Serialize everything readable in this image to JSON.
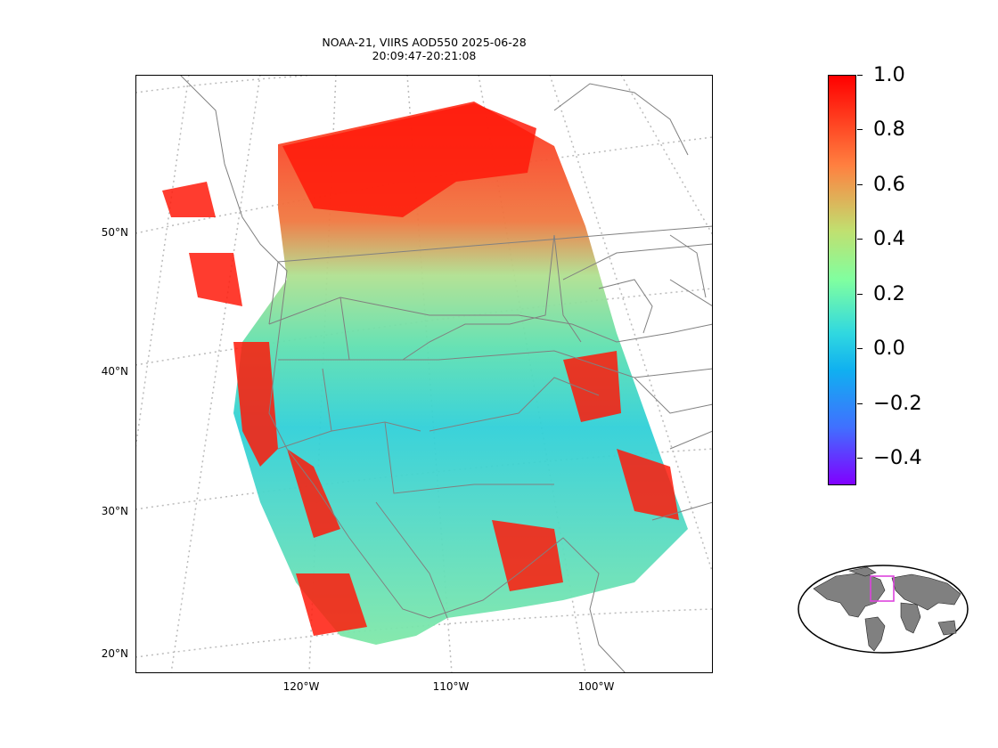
{
  "title": {
    "line1": "NOAA-21, VIIRS AOD550 2025-06-28",
    "line2": "20:09:47-20:21:08"
  },
  "map": {
    "latitude_labels": [
      "50°N",
      "40°N",
      "30°N",
      "20°N"
    ],
    "longitude_labels": [
      "120°W",
      "110°W",
      "100°W"
    ],
    "land_color": "#ffffff",
    "border_color": "#808080",
    "graticule_color": "#bbbbbb"
  },
  "colorbar": {
    "colormap": "rainbow",
    "range": [
      -0.5,
      1.0
    ],
    "tick_values": [
      1.0,
      0.8,
      0.6,
      0.4,
      0.2,
      0.0,
      -0.2,
      -0.4
    ],
    "tick_labels": [
      "1.0",
      "0.8",
      "0.6",
      "0.4",
      "0.2",
      "0.0",
      "−0.2",
      "−0.4"
    ]
  },
  "inset": {
    "land_color": "#808080",
    "box_color": "#dd44dd"
  }
}
